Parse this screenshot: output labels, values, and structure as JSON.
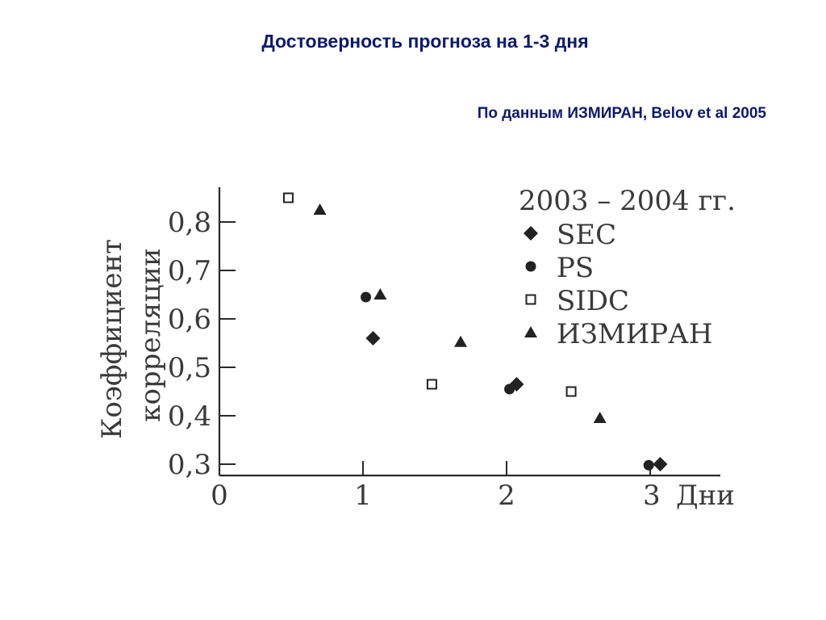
{
  "title": "Достоверность прогноза на 1-3 дня",
  "subtitle": "По данным ИЗМИРАН, Belov et al 2005",
  "chart_data": {
    "type": "scatter",
    "legend_title": "2003 – 2004 гг.",
    "ylabel_line1": "Коэффициент",
    "ylabel_line2": "корреляции",
    "xlabel": "Дни",
    "xlim": [
      0,
      3.5
    ],
    "ylim": [
      0.28,
      0.87
    ],
    "x_ticks": [
      "0",
      "1",
      "2",
      "3"
    ],
    "y_ticks": [
      "0,3",
      "0,4",
      "0,5",
      "0,6",
      "0,7",
      "0,8"
    ],
    "legend_position": "top-right",
    "grid": false,
    "series": [
      {
        "name": "SEC",
        "marker": "diamond",
        "x": [
          1.07,
          2.07,
          3.07
        ],
        "y": [
          0.56,
          0.465,
          0.3
        ]
      },
      {
        "name": "PS",
        "marker": "circle",
        "x": [
          1.02,
          2.02,
          2.99
        ],
        "y": [
          0.645,
          0.455,
          0.298
        ]
      },
      {
        "name": "SIDC",
        "marker": "square",
        "x": [
          0.48,
          1.48,
          2.45
        ],
        "y": [
          0.85,
          0.465,
          0.45
        ]
      },
      {
        "name": "ИЗМИРАН",
        "marker": "triangle",
        "x": [
          0.7,
          1.12,
          1.68,
          2.65
        ],
        "y": [
          0.825,
          0.65,
          0.552,
          0.395
        ]
      }
    ],
    "colors": {
      "marker": "#222222",
      "axis": "#2a2a2a",
      "text": "#3a3a3a"
    }
  }
}
